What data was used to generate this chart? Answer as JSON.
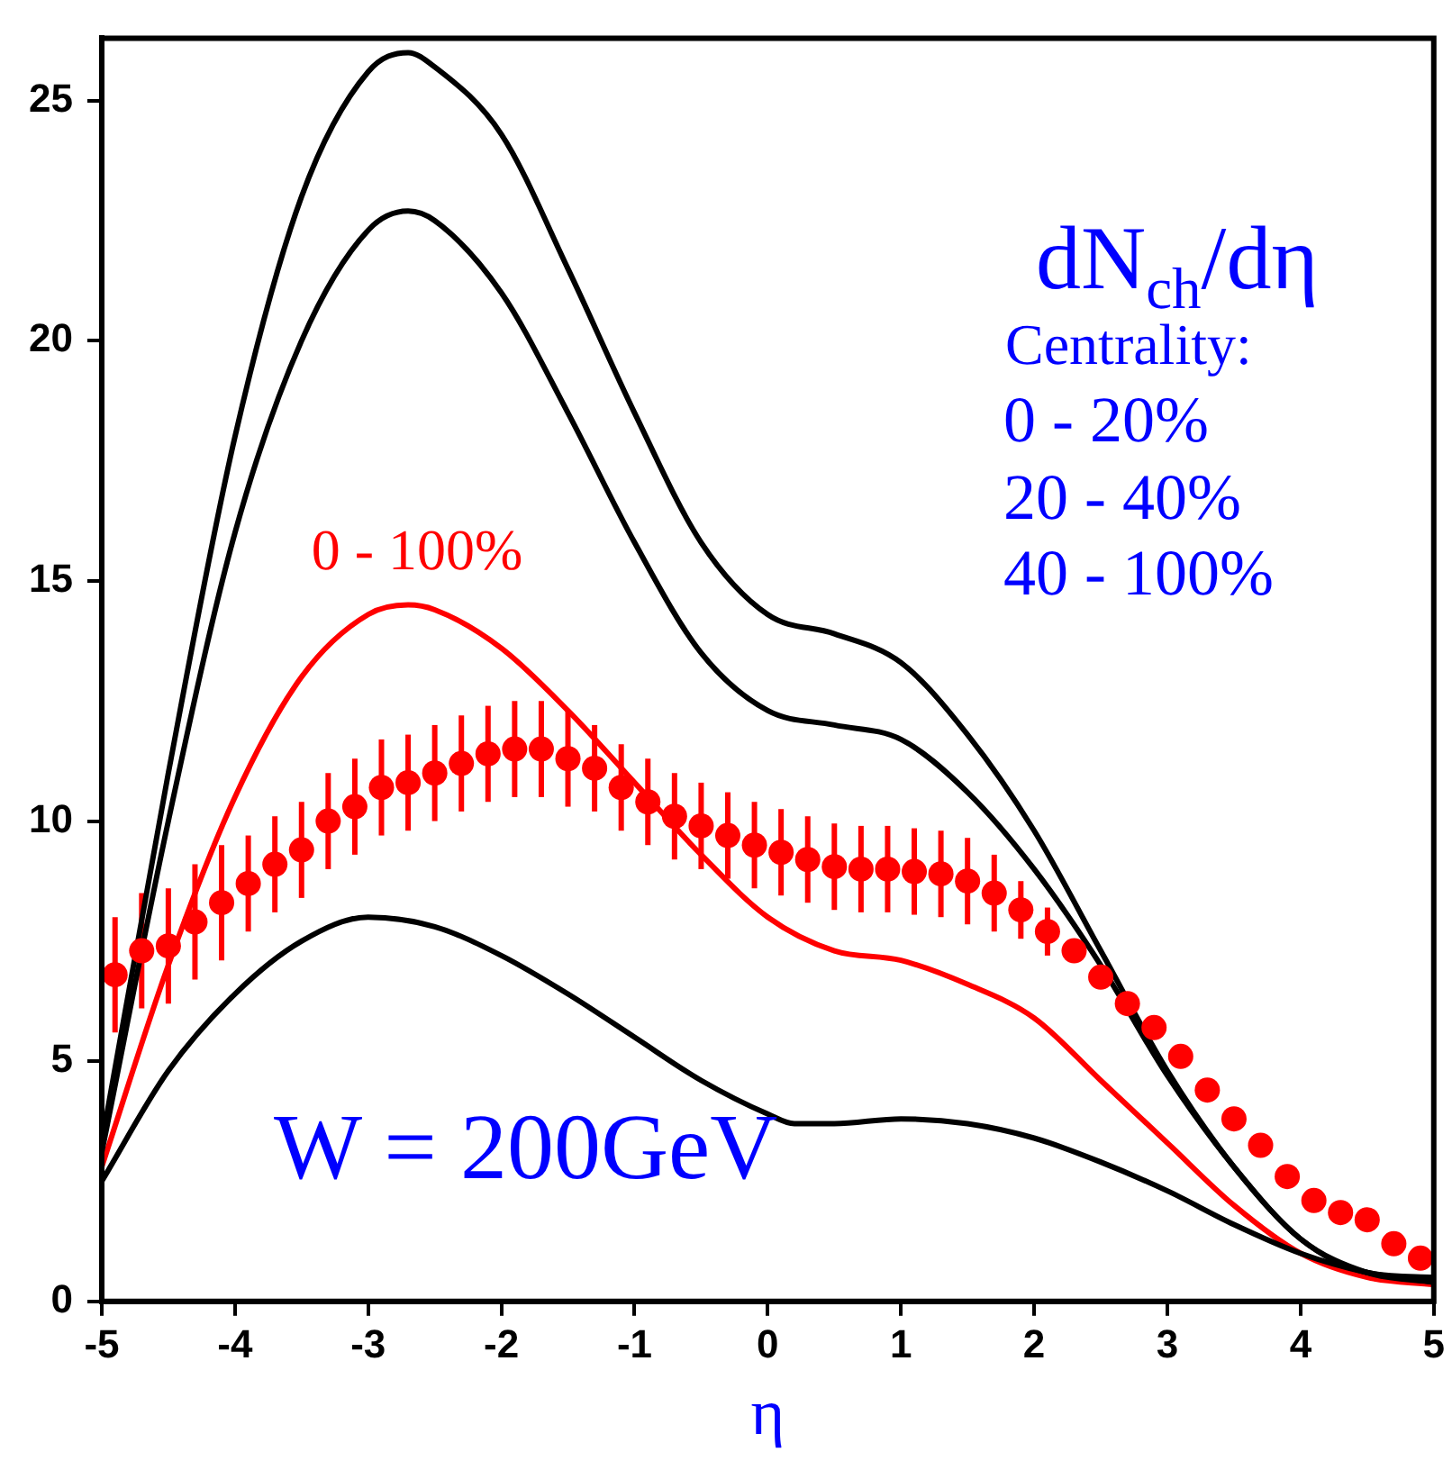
{
  "chart_data": {
    "type": "line",
    "xlabel": "η",
    "xlim": [
      -5,
      5
    ],
    "xticks": [
      -5,
      -4,
      -3,
      -2,
      -1,
      0,
      1,
      2,
      3,
      4,
      5
    ],
    "ylim": [
      0,
      26.3
    ],
    "yticks": [
      0,
      5,
      10,
      15,
      20,
      25
    ],
    "grid": false,
    "legend": false,
    "line_style": "solid",
    "marker": "none",
    "annotations": [
      "dN$_{ch}$/dη",
      "Centrality:",
      "0 - 20%",
      "20 - 40%",
      "40 - 100%",
      "W = 200GeV"
    ],
    "series": [
      {
        "color": "#000000",
        "x": [
          -5,
          -4.5,
          -4,
          -3.5,
          -3,
          -2.7,
          -2.5,
          -2,
          -1.5,
          -1,
          -0.5,
          0,
          0.5,
          1,
          1.5,
          2,
          2.5,
          3,
          3.5,
          4,
          4.5,
          5
        ],
        "values": [
          3.3,
          11,
          18,
          23,
          25.6,
          26.0,
          25.7,
          24.3,
          21.5,
          18.5,
          15.8,
          14.3,
          13.9,
          13.3,
          11.8,
          9.8,
          7.3,
          4.8,
          2.8,
          1.3,
          0.6,
          0.5
        ]
      },
      {
        "color": "#000000",
        "x": [
          -5,
          -4.5,
          -4,
          -3.5,
          -3,
          -2.7,
          -2.5,
          -2,
          -1.5,
          -1,
          -0.5,
          0,
          0.5,
          1,
          1.5,
          2,
          2.5,
          3,
          3.5,
          4,
          4.5,
          5
        ],
        "values": [
          3.1,
          10,
          16,
          20,
          22.3,
          22.7,
          22.5,
          21.0,
          18.5,
          15.8,
          13.5,
          12.3,
          12.0,
          11.7,
          10.6,
          9.0,
          7.0,
          4.7,
          2.8,
          1.3,
          0.6,
          0.4
        ]
      },
      {
        "color": "#000000",
        "x": [
          -5,
          -4.5,
          -4,
          -3.5,
          -3,
          -2.5,
          -2,
          -1.5,
          -1,
          -0.5,
          0,
          0.2,
          0.5,
          1,
          1.5,
          2,
          2.5,
          3,
          3.5,
          4,
          4.5,
          5
        ],
        "values": [
          2.5,
          4.8,
          6.4,
          7.5,
          8.0,
          7.8,
          7.2,
          6.4,
          5.5,
          4.6,
          3.9,
          3.7,
          3.7,
          3.8,
          3.7,
          3.4,
          2.9,
          2.3,
          1.6,
          1.0,
          0.6,
          0.4
        ]
      },
      {
        "name": "0 - 100%",
        "color": "#ff0000",
        "x": [
          -5,
          -4.5,
          -4,
          -3.5,
          -3,
          -2.7,
          -2.5,
          -2,
          -1.5,
          -1,
          -0.5,
          0,
          0.5,
          1,
          1.5,
          2,
          2.5,
          3,
          3.5,
          4,
          4.5,
          5
        ],
        "values": [
          2.8,
          7,
          10.5,
          13,
          14.3,
          14.5,
          14.4,
          13.6,
          12.3,
          10.8,
          9.3,
          8.0,
          7.3,
          7.1,
          6.6,
          5.9,
          4.6,
          3.3,
          2.0,
          1.0,
          0.5,
          0.35
        ]
      },
      {
        "type": "scatter",
        "marker": "circle",
        "color": "#ff0000",
        "x": [
          -4.9,
          -4.7,
          -4.5,
          -4.3,
          -4.1,
          -3.9,
          -3.7,
          -3.5,
          -3.3,
          -3.1,
          -2.9,
          -2.7,
          -2.5,
          -2.3,
          -2.1,
          -1.9,
          -1.7,
          -1.5,
          -1.3,
          -1.1,
          -0.9,
          -0.7,
          -0.5,
          -0.3,
          -0.1,
          0.1,
          0.3,
          0.5,
          0.7,
          0.9,
          1.1,
          1.3,
          1.5,
          1.7,
          1.9,
          2.1,
          2.3,
          2.5,
          2.7,
          2.9,
          3.1,
          3.3,
          3.5,
          3.7,
          3.9,
          4.1,
          4.3,
          4.5,
          4.7,
          4.9
        ],
        "values": [
          6.8,
          7.3,
          7.4,
          7.9,
          8.3,
          8.7,
          9.1,
          9.4,
          10.0,
          10.3,
          10.7,
          10.8,
          11.0,
          11.2,
          11.4,
          11.5,
          11.5,
          11.3,
          11.1,
          10.7,
          10.4,
          10.1,
          9.9,
          9.7,
          9.5,
          9.35,
          9.2,
          9.05,
          9.0,
          9.0,
          8.95,
          8.9,
          8.75,
          8.5,
          8.15,
          7.7,
          7.3,
          6.75,
          6.2,
          5.7,
          5.1,
          4.4,
          3.8,
          3.25,
          2.6,
          2.1,
          1.85,
          1.7,
          1.2,
          0.9
        ],
        "errors": [
          1.2,
          1.2,
          1.2,
          1.2,
          1.2,
          1.0,
          1.0,
          1.0,
          1.0,
          1.0,
          1.0,
          1.0,
          1.0,
          1.0,
          1.0,
          1.0,
          1.0,
          1.0,
          0.9,
          0.9,
          0.9,
          0.9,
          0.9,
          0.9,
          0.9,
          0.9,
          0.9,
          0.9,
          0.9,
          0.9,
          0.9,
          0.9,
          0.9,
          0.8,
          0.6,
          0.5,
          null,
          null,
          null,
          null,
          null,
          null,
          null,
          null,
          null,
          null,
          null,
          null,
          null,
          null
        ]
      }
    ]
  }
}
